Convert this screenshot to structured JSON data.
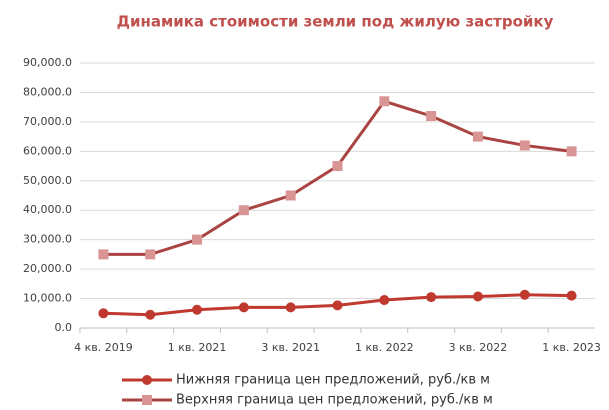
{
  "chart_data": {
    "type": "line",
    "title": "Динамика стоимости земли под жилую застройку",
    "categories": [
      "4 кв. 2019",
      null,
      "1 кв. 2021",
      null,
      "3 кв. 2021",
      null,
      "1 кв. 2022",
      null,
      "3 кв. 2022",
      null,
      "1 кв. 2023"
    ],
    "series": [
      {
        "name": "Нижняя граница цен предложений, руб./кв м",
        "color": "#c0392e",
        "marker": "circle",
        "values": [
          5000,
          4500,
          6200,
          7000,
          7000,
          7700,
          9500,
          10500,
          10700,
          11300,
          11000
        ]
      },
      {
        "name": "Верхняя граница цен предложений, руб./кв м",
        "color": "#a94442",
        "marker_color": "#d99594",
        "marker": "square",
        "values": [
          25000,
          25000,
          30000,
          40000,
          45000,
          55000,
          77000,
          72000,
          65000,
          62000,
          60000
        ]
      }
    ],
    "ylim": [
      0,
      90000
    ],
    "yticks": [
      {
        "value": 0,
        "label": "0.0"
      },
      {
        "value": 10000,
        "label": "10,000.0"
      },
      {
        "value": 20000,
        "label": "20,000.0"
      },
      {
        "value": 30000,
        "label": "30,000.0"
      },
      {
        "value": 40000,
        "label": "40,000.0"
      },
      {
        "value": 50000,
        "label": "50,000.0"
      },
      {
        "value": 60000,
        "label": "60,000.0"
      },
      {
        "value": 70000,
        "label": "70,000.0"
      },
      {
        "value": 80000,
        "label": "80,000.0"
      },
      {
        "value": 90000,
        "label": "90,000.0"
      }
    ],
    "grid": true
  }
}
